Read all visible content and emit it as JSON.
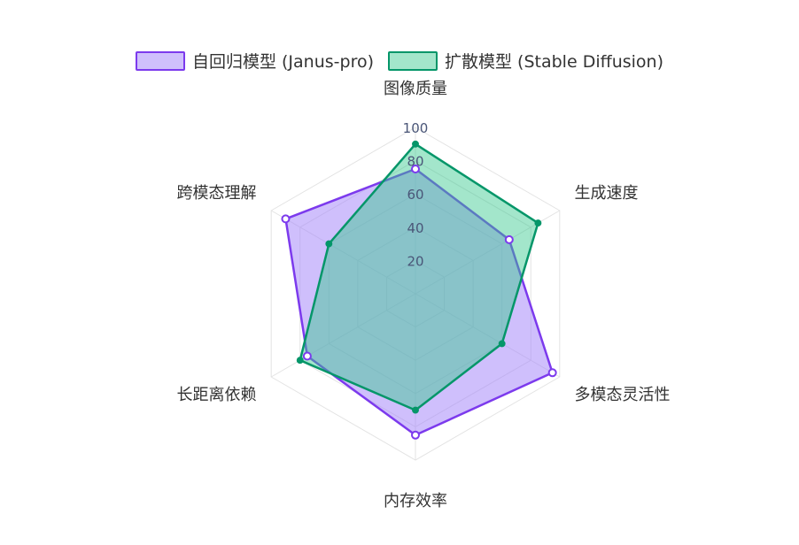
{
  "chart_data": {
    "type": "radar",
    "title": "",
    "axes": [
      "图像质量",
      "生成速度",
      "多模态灵活性",
      "内存效率",
      "长距离依赖",
      "跨模态理解"
    ],
    "radial_range": [
      0,
      100
    ],
    "radial_ticks": [
      "20",
      "40",
      "60",
      "80",
      "100"
    ],
    "grid": true,
    "legend_position": "top-center",
    "series": [
      {
        "name": "自回归模型 (Janus-pro)",
        "values": [
          75,
          65,
          95,
          85,
          75,
          90
        ],
        "color": "#7c3aed",
        "fill": "rgba(167,139,250,0.55)"
      },
      {
        "name": "扩散模型 (Stable Diffusion)",
        "values": [
          90,
          85,
          60,
          70,
          80,
          60
        ],
        "color": "#059669",
        "fill": "rgba(52,199,140,0.45)"
      }
    ]
  }
}
